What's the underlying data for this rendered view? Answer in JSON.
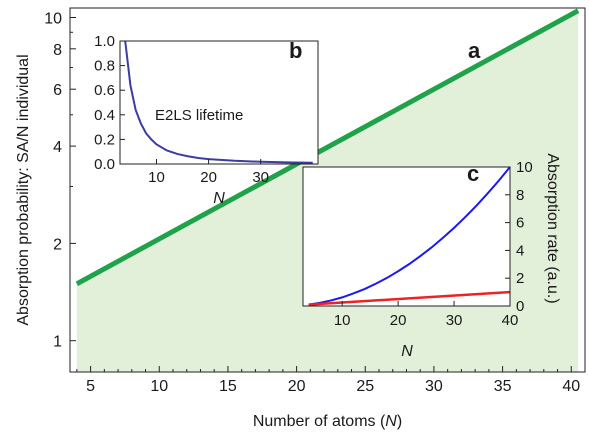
{
  "chart_data": [
    {
      "panel": "a",
      "type": "area",
      "xlabel": "Number of atoms (N)",
      "xlabel_parts": [
        "Number of atoms (",
        "N",
        ")"
      ],
      "ylabel": "Absorption probability: SA/N individual",
      "xlim": [
        3.5,
        41
      ],
      "ylim": [
        0.8,
        10.7
      ],
      "xticks": [
        5,
        10,
        15,
        20,
        25,
        30,
        35,
        40
      ],
      "yticks": [
        1,
        2,
        4,
        6,
        8,
        10
      ],
      "series": [
        {
          "x": [
            4,
            40.5
          ],
          "y": [
            1.5,
            10.5
          ],
          "color": "#1fa34a",
          "fill": "#e2efd9"
        }
      ]
    },
    {
      "panel": "b",
      "type": "line",
      "annotation": "E2LS lifetime",
      "xlabel": "N",
      "xlim": [
        3,
        41
      ],
      "ylim": [
        0,
        1.0
      ],
      "xticks": [
        10,
        20,
        30
      ],
      "yticks": [
        0.0,
        0.2,
        0.4,
        0.6,
        0.8,
        1.0
      ],
      "series": [
        {
          "x": [
            4,
            5,
            6,
            7,
            8,
            9,
            10,
            12,
            14,
            16,
            18,
            20,
            25,
            30,
            35,
            40
          ],
          "y": [
            1.0,
            0.64,
            0.44,
            0.33,
            0.25,
            0.2,
            0.16,
            0.11,
            0.082,
            0.063,
            0.049,
            0.04,
            0.026,
            0.018,
            0.013,
            0.01
          ],
          "color": "#3b3da0"
        }
      ]
    },
    {
      "panel": "c",
      "type": "line",
      "xlabel": "N",
      "ylabel": "Absorption rate (a.u.)",
      "xlim": [
        3,
        40
      ],
      "ylim": [
        0,
        10
      ],
      "xticks": [
        10,
        20,
        30,
        40
      ],
      "yticks": [
        0,
        2,
        4,
        6,
        8,
        10
      ],
      "series": [
        {
          "x": [
            4,
            6,
            8,
            10,
            12,
            14,
            16,
            18,
            20,
            22,
            24,
            26,
            28,
            30,
            32,
            34,
            36,
            38,
            40
          ],
          "y": [
            0.1,
            0.23,
            0.4,
            0.62,
            0.9,
            1.22,
            1.6,
            2.02,
            2.5,
            3.02,
            3.6,
            4.22,
            4.9,
            5.62,
            6.4,
            7.22,
            8.1,
            9.02,
            10.0
          ],
          "color": "#1a1aee"
        },
        {
          "x": [
            4,
            40
          ],
          "y": [
            0.1,
            1.0
          ],
          "color": "#ee2222"
        }
      ]
    }
  ]
}
